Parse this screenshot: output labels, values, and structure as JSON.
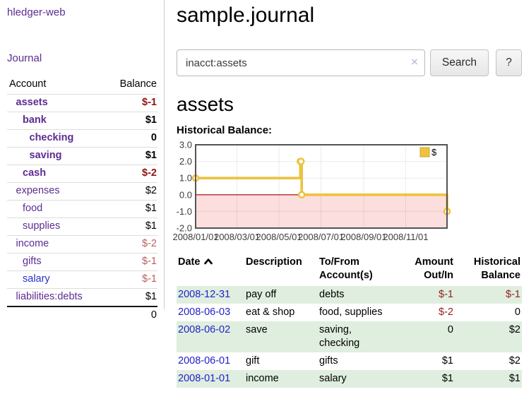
{
  "app": {
    "brand": "hledger-web"
  },
  "sidebar": {
    "nav": {
      "journal": "Journal"
    },
    "accounts_table": {
      "headers": [
        "Account",
        "Balance"
      ],
      "rows": [
        {
          "account": "assets",
          "balance": "$-1",
          "depth": 1,
          "in_view": true
        },
        {
          "account": "bank",
          "balance": "$1",
          "depth": 2,
          "in_view": true
        },
        {
          "account": "checking",
          "balance": "0",
          "depth": 3,
          "in_view": true
        },
        {
          "account": "saving",
          "balance": "$1",
          "depth": 3,
          "in_view": true
        },
        {
          "account": "cash",
          "balance": "$-2",
          "depth": 2,
          "in_view": true
        },
        {
          "account": "expenses",
          "balance": "$2",
          "depth": 1,
          "in_view": false
        },
        {
          "account": "food",
          "balance": "$1",
          "depth": 2,
          "in_view": false
        },
        {
          "account": "supplies",
          "balance": "$1",
          "depth": 2,
          "in_view": false
        },
        {
          "account": "income",
          "balance": "$-2",
          "depth": 1,
          "in_view": false
        },
        {
          "account": "gifts",
          "balance": "$-1",
          "depth": 2,
          "in_view": false
        },
        {
          "account": "salary",
          "balance": "$-1",
          "depth": 2,
          "in_view": false,
          "link_color": "blue"
        },
        {
          "account": "liabilities:debts",
          "balance": "$1",
          "depth": 1,
          "in_view": false
        }
      ],
      "total": "0"
    }
  },
  "header": {
    "title": "sample.journal"
  },
  "search": {
    "value": "inacct:assets",
    "clear_icon": "×",
    "button": "Search",
    "help": "?"
  },
  "account_view": {
    "heading": "assets",
    "chart_title": "Historical Balance:"
  },
  "chart_data": {
    "type": "line",
    "step": true,
    "series": [
      {
        "name": "$",
        "color": "#edc240",
        "points": [
          [
            "2008-01-01",
            1
          ],
          [
            "2008-06-01",
            2
          ],
          [
            "2008-06-02",
            2
          ],
          [
            "2008-06-03",
            0
          ],
          [
            "2008-12-31",
            -1
          ]
        ]
      }
    ],
    "x_range": [
      "2008-01-01",
      "2008-12-31"
    ],
    "ylim": [
      -2,
      3
    ],
    "y_ticks": [
      {
        "value": 3,
        "label": "3.0"
      },
      {
        "value": 2,
        "label": "2.0"
      },
      {
        "value": 1,
        "label": "1.0"
      },
      {
        "value": 0,
        "label": "0.0"
      },
      {
        "value": -1,
        "label": "-1.0"
      },
      {
        "value": -2,
        "label": "-2.0"
      }
    ],
    "x_ticks": [
      {
        "date": "2008-01-01",
        "label": "2008/01/01"
      },
      {
        "date": "2008-03-01",
        "label": "2008/03/01"
      },
      {
        "date": "2008-05-01",
        "label": "2008/05/01"
      },
      {
        "date": "2008-07-01",
        "label": "2008/07/01"
      },
      {
        "date": "2008-09-01",
        "label": "2008/09/01"
      },
      {
        "date": "2008-11-01",
        "label": "2008/11/01"
      }
    ],
    "legend": {
      "label": "$",
      "position": "top-right"
    },
    "grid": true,
    "negative_region": true
  },
  "transactions": {
    "headers": {
      "date": "Date",
      "description": "Description",
      "accounts": "To/From Account(s)",
      "amount": "Amount Out/In",
      "balance": "Historical Balance"
    },
    "sort": {
      "column": "date",
      "direction": "ascending"
    },
    "rows": [
      {
        "date": "2008-12-31",
        "description": "pay off",
        "accounts": "debts",
        "amount": "$-1",
        "balance": "$-1"
      },
      {
        "date": "2008-06-03",
        "description": "eat & shop",
        "accounts": "food, supplies",
        "amount": "$-2",
        "balance": "0"
      },
      {
        "date": "2008-06-02",
        "description": "save",
        "accounts": "saving, checking",
        "amount": "0",
        "balance": "$2"
      },
      {
        "date": "2008-06-01",
        "description": "gift",
        "accounts": "gifts",
        "amount": "$1",
        "balance": "$2"
      },
      {
        "date": "2008-01-01",
        "description": "income",
        "accounts": "salary",
        "amount": "$1",
        "balance": "$1"
      }
    ]
  },
  "colors": {
    "accent_purple": "#5c2d91",
    "link_blue": "#2233cc",
    "negative_strong": "#8f1414",
    "negative_soft": "#b86060",
    "negative_txn": "#962121",
    "row_stripe_green": "#dfeedf",
    "chart_line_gold": "#edc240",
    "chart_negative_fill": "#fcdede",
    "chart_zero_line": "#a40000",
    "chart_border": "#545454"
  }
}
